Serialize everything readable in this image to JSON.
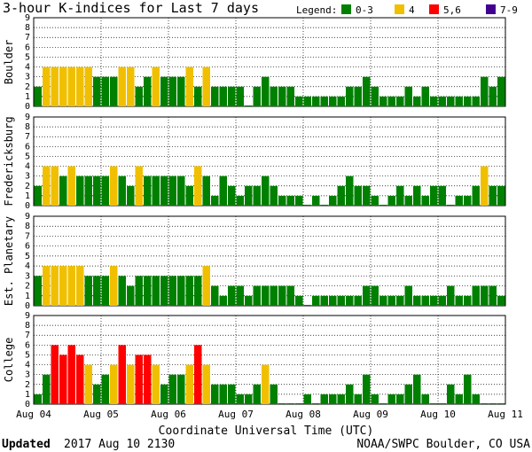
{
  "chart_data": {
    "type": "bar",
    "title": "3-hour K-indices for Last 7 days",
    "xlabel": "Coordinate Universal Time (UTC)",
    "ylim": [
      0,
      9
    ],
    "yticks": [
      "0",
      "1",
      "2",
      "3",
      "4",
      "5",
      "6",
      "7",
      "8",
      "9"
    ],
    "xticks": [
      "Aug 04",
      "Aug 05",
      "Aug 06",
      "Aug 07",
      "Aug 08",
      "Aug 09",
      "Aug 10",
      "Aug 11"
    ],
    "legend": {
      "title": "Legend:",
      "items": [
        {
          "label": "0-3",
          "color": "#008000"
        },
        {
          "label": "4",
          "color": "#f0c000"
        },
        {
          "label": "5,6",
          "color": "#ff0000"
        },
        {
          "label": "7-9",
          "color": "#400090"
        }
      ]
    },
    "series": [
      {
        "name": "Boulder",
        "values": [
          2,
          4,
          4,
          4,
          4,
          4,
          4,
          3,
          3,
          3,
          4,
          4,
          2,
          3,
          4,
          3,
          3,
          3,
          4,
          2,
          4,
          2,
          2,
          2,
          2,
          0,
          2,
          3,
          2,
          2,
          2,
          1,
          1,
          1,
          1,
          1,
          1,
          2,
          2,
          3,
          2,
          1,
          1,
          1,
          2,
          1,
          2,
          1,
          1,
          1,
          1,
          1,
          1,
          3,
          2,
          3,
          1,
          0
        ]
      },
      {
        "name": "Fredericksburg",
        "values": [
          2,
          4,
          4,
          3,
          4,
          3,
          3,
          3,
          3,
          4,
          3,
          2,
          4,
          3,
          3,
          3,
          3,
          3,
          2,
          4,
          3,
          1,
          3,
          2,
          1,
          2,
          2,
          3,
          2,
          1,
          1,
          1,
          0,
          1,
          0,
          1,
          2,
          3,
          2,
          2,
          1,
          0,
          1,
          2,
          1,
          2,
          1,
          2,
          2,
          0,
          1,
          1,
          2,
          4,
          2,
          2,
          0
        ]
      },
      {
        "name": "Est. Planetary",
        "values": [
          3,
          4,
          4,
          4,
          4,
          4,
          3,
          3,
          3,
          4,
          3,
          2,
          3,
          3,
          3,
          3,
          3,
          3,
          3,
          3,
          4,
          2,
          1,
          2,
          2,
          1,
          2,
          2,
          2,
          2,
          2,
          1,
          0,
          1,
          1,
          1,
          1,
          1,
          1,
          2,
          2,
          1,
          1,
          1,
          2,
          1,
          1,
          1,
          1,
          2,
          1,
          1,
          2,
          2,
          2,
          1,
          0
        ]
      },
      {
        "name": "College",
        "values": [
          1,
          3,
          6,
          5,
          6,
          5,
          4,
          2,
          3,
          4,
          6,
          4,
          5,
          5,
          4,
          2,
          3,
          3,
          4,
          6,
          4,
          2,
          2,
          2,
          1,
          1,
          2,
          4,
          2,
          0,
          0,
          0,
          1,
          0,
          1,
          1,
          1,
          2,
          1,
          3,
          1,
          0,
          1,
          1,
          2,
          3,
          1,
          0,
          0,
          2,
          1,
          3,
          1,
          0,
          0,
          0,
          0
        ]
      }
    ]
  },
  "footer": {
    "updated_label": "Updated",
    "updated_value": "2017 Aug 10 2130",
    "credit": "NOAA/SWPC Boulder, CO USA"
  }
}
